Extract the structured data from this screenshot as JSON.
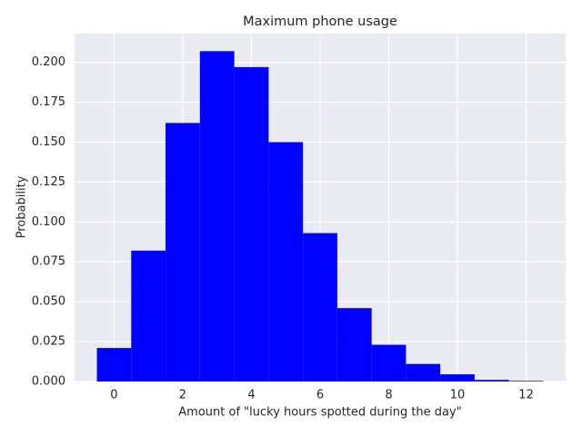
{
  "chart_data": {
    "type": "histogram",
    "title": "Maximum phone usage",
    "x_label": "Amount of \"lucky hours spotted during the day\"",
    "y_label": "Probability",
    "bins": [
      -0.5,
      0.5,
      1.5,
      2.5,
      3.5,
      4.5,
      5.5,
      6.5,
      7.5,
      8.5,
      9.5,
      10.5,
      11.5,
      12.5
    ],
    "values": [
      0.021,
      0.082,
      0.162,
      0.207,
      0.197,
      0.15,
      0.093,
      0.046,
      0.023,
      0.011,
      0.0045,
      0.001,
      0.0004
    ],
    "color": "#0000ff",
    "background": "#eaeaf2",
    "grid": true,
    "xlim": [
      -1.15,
      13.15
    ],
    "xticks": [
      0,
      2,
      4,
      6,
      8,
      10,
      12
    ],
    "ylim": [
      0,
      0.218
    ],
    "yticks": [
      {
        "value": 0,
        "label": "0.000"
      },
      {
        "value": 0.025,
        "label": "0.025"
      },
      {
        "value": 0.05,
        "label": "0.050"
      },
      {
        "value": 0.075,
        "label": "0.075"
      },
      {
        "value": 0.1,
        "label": "0.100"
      },
      {
        "value": 0.125,
        "label": "0.125"
      },
      {
        "value": 0.15,
        "label": "0.150"
      },
      {
        "value": 0.175,
        "label": "0.175"
      },
      {
        "value": 0.2,
        "label": "0.200"
      }
    ]
  }
}
